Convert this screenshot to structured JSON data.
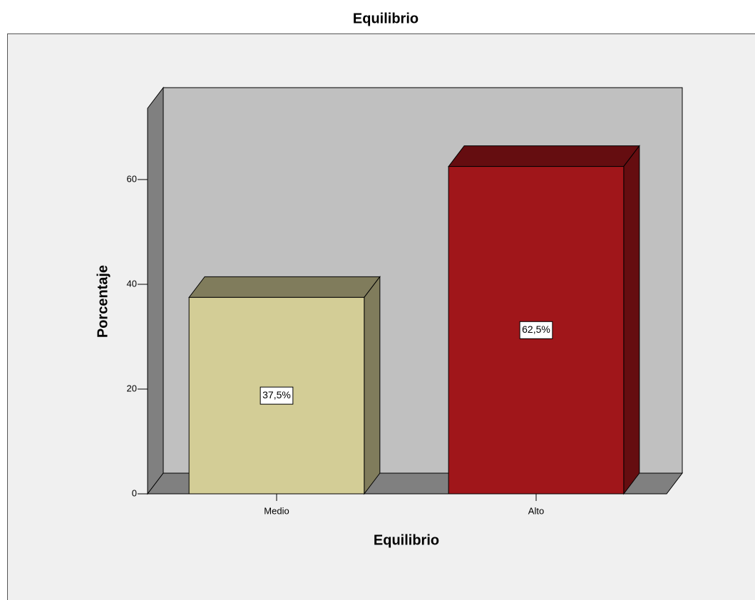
{
  "chart_data": {
    "type": "bar3d",
    "title": "Equilibrio",
    "x_label": "Equilibrio",
    "y_label": "Porcentaje",
    "categories": [
      "Medio",
      "Alto"
    ],
    "values": [
      37.5,
      62.5
    ],
    "value_labels": [
      "37,5%",
      "62,5%"
    ],
    "colors": [
      "#d3cd96",
      "#a0161a"
    ],
    "side_colors": [
      "#807c5c",
      "#650d10"
    ],
    "ylim": [
      0,
      73.6
    ],
    "yticks": [
      0,
      20,
      40,
      60
    ]
  }
}
